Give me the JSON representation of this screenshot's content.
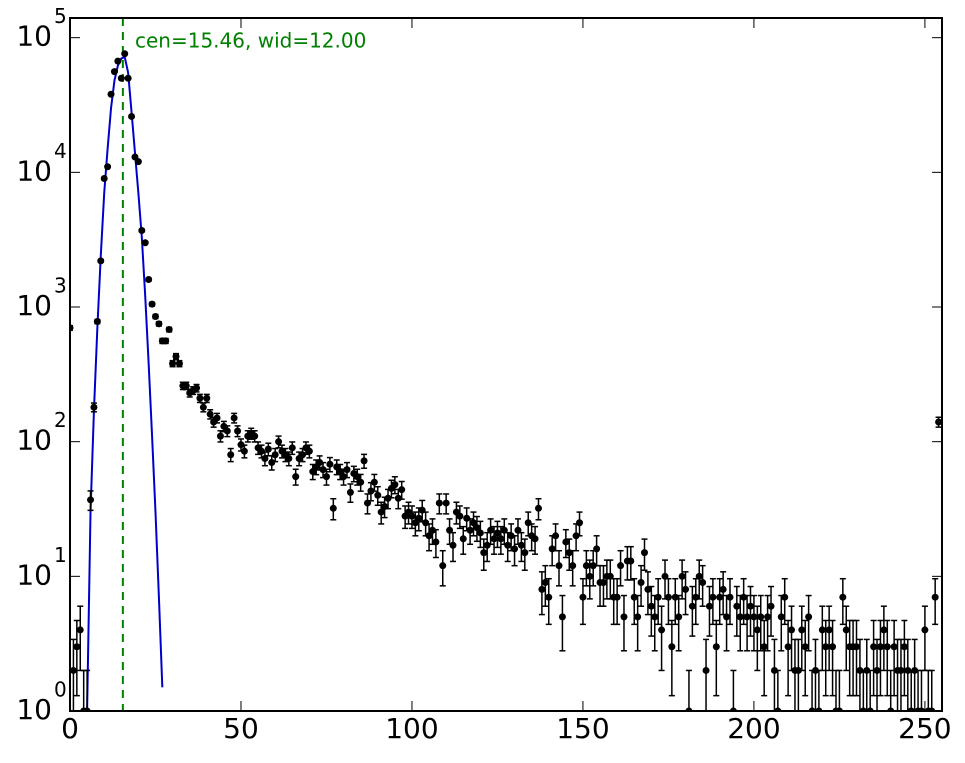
{
  "chart_data": {
    "type": "scatter",
    "yscale": "log",
    "xlim": [
      0,
      255
    ],
    "ylim": [
      1,
      140000
    ],
    "xticks": [
      0,
      50,
      100,
      150,
      200,
      250
    ],
    "yticks": [
      {
        "value": 1,
        "label": "10",
        "exponent": "0"
      },
      {
        "value": 10,
        "label": "10",
        "exponent": "1"
      },
      {
        "value": 100,
        "label": "10",
        "exponent": "2"
      },
      {
        "value": 1000,
        "label": "10",
        "exponent": "3"
      },
      {
        "value": 10000,
        "label": "10",
        "exponent": "4"
      },
      {
        "value": 100000,
        "label": "10",
        "exponent": "5"
      }
    ],
    "annotation": "cen=15.46, wid=12.00",
    "vline": {
      "x": 15.46,
      "color": "#008000"
    },
    "series": [
      {
        "kind": "errorbar",
        "color": "#000000",
        "x": [
          0,
          1,
          2,
          3,
          4,
          5,
          6,
          7,
          8,
          9,
          10,
          11,
          12,
          13,
          14,
          15,
          16,
          17,
          18,
          19,
          20,
          21,
          22,
          23,
          24,
          25,
          26,
          27,
          28,
          29,
          30,
          31,
          32,
          33,
          34,
          35,
          36,
          37,
          38,
          39,
          40,
          41,
          42,
          43,
          44,
          45,
          46,
          47,
          48,
          49,
          50,
          51,
          52,
          53,
          54,
          55,
          56,
          57,
          58,
          59,
          60,
          61,
          62,
          63,
          64,
          65,
          66,
          67,
          68,
          69,
          70,
          71,
          72,
          73,
          74,
          75,
          76,
          77,
          78,
          79,
          80,
          81,
          82,
          83,
          84,
          85,
          86,
          87,
          88,
          89,
          90,
          91,
          92,
          93,
          94,
          95,
          96,
          97,
          98,
          99,
          100,
          101,
          102,
          103,
          104,
          105,
          106,
          107,
          108,
          109,
          110,
          111,
          112,
          113,
          114,
          115,
          116,
          117,
          118,
          119,
          120,
          121,
          122,
          123,
          124,
          125,
          126,
          127,
          128,
          129,
          130,
          131,
          132,
          133,
          134,
          135,
          136,
          137,
          138,
          139,
          140,
          141,
          142,
          143,
          144,
          145,
          146,
          147,
          148,
          149,
          150,
          151,
          152,
          153,
          154,
          155,
          156,
          157,
          158,
          159,
          160,
          161,
          162,
          163,
          164,
          165,
          166,
          167,
          168,
          169,
          170,
          171,
          172,
          173,
          174,
          175,
          176,
          177,
          178,
          179,
          180,
          181,
          182,
          183,
          184,
          185,
          186,
          187,
          188,
          189,
          190,
          191,
          192,
          193,
          194,
          195,
          196,
          197,
          198,
          199,
          200,
          201,
          202,
          203,
          204,
          205,
          206,
          207,
          208,
          209,
          210,
          211,
          212,
          213,
          214,
          215,
          216,
          217,
          218,
          219,
          220,
          221,
          222,
          223,
          224,
          225,
          226,
          227,
          228,
          229,
          230,
          231,
          232,
          233,
          234,
          235,
          236,
          237,
          238,
          239,
          240,
          241,
          242,
          243,
          244,
          245,
          246,
          247,
          248,
          249,
          250,
          251,
          252,
          253,
          254
        ],
        "values": [
          700,
          2,
          3,
          4,
          1,
          1,
          37,
          180,
          780,
          2200,
          9000,
          11000,
          38000,
          56000,
          67000,
          50000,
          76000,
          50000,
          26000,
          13000,
          12000,
          3700,
          3000,
          1600,
          1050,
          850,
          750,
          560,
          560,
          680,
          380,
          430,
          380,
          260,
          260,
          230,
          240,
          250,
          210,
          180,
          210,
          160,
          140,
          150,
          110,
          130,
          120,
          80,
          150,
          120,
          95,
          85,
          110,
          115,
          110,
          90,
          85,
          75,
          88,
          70,
          80,
          100,
          85,
          80,
          75,
          90,
          55,
          75,
          80,
          90,
          85,
          60,
          65,
          70,
          62,
          55,
          68,
          32,
          65,
          60,
          55,
          62,
          42,
          58,
          55,
          50,
          72,
          35,
          43,
          50,
          40,
          30,
          33,
          38,
          45,
          48,
          38,
          44,
          28,
          30,
          28,
          25,
          27,
          31,
          25,
          20,
          22,
          18,
          35,
          12,
          35,
          22,
          17,
          30,
          28,
          19,
          27,
          22,
          25,
          23,
          21,
          15,
          17,
          22,
          19,
          21,
          19,
          22,
          17,
          20,
          16,
          22,
          17,
          15,
          25,
          20,
          19,
          32,
          8,
          9,
          7,
          16,
          20,
          12,
          5,
          18,
          15,
          12,
          20,
          25,
          7,
          12,
          10,
          12,
          16,
          9,
          9,
          10,
          10,
          7,
          7,
          12,
          5,
          13,
          13,
          7,
          5,
          9,
          15,
          8,
          6,
          5,
          7,
          4,
          10,
          7,
          3,
          7,
          5,
          10,
          8,
          1,
          6,
          7,
          10,
          9,
          2,
          6,
          7,
          3,
          7,
          8,
          5,
          7,
          1,
          6,
          5,
          7,
          5,
          6,
          5,
          4,
          5,
          3,
          5,
          6,
          2,
          1,
          5,
          7,
          3,
          4,
          2,
          2,
          4,
          3,
          5,
          1,
          2,
          1,
          4,
          3,
          4,
          3,
          1,
          1,
          7,
          4,
          3,
          3,
          3,
          2,
          1,
          2,
          1,
          3,
          2,
          3,
          4,
          3,
          1,
          3,
          2,
          2,
          3,
          2,
          1,
          2,
          1,
          1,
          4,
          1,
          1,
          7,
          140
        ],
        "errors": [
          26.5,
          1.4,
          1.7,
          2,
          1,
          1,
          6.1,
          13.4,
          27.9,
          46.9,
          94.9,
          104.9,
          194.9,
          236.6,
          258.8,
          223.6,
          275.7,
          223.6,
          161.2,
          114,
          109.5,
          60.8,
          54.8,
          40,
          32.4,
          29.2,
          27.4,
          23.7,
          23.7,
          26.1,
          19.5,
          20.7,
          19.5,
          16.1,
          16.1,
          15.2,
          15.5,
          15.8,
          14.5,
          13.4,
          14.5,
          12.6,
          11.8,
          12.2,
          10.5,
          11.4,
          11,
          8.9,
          12.2,
          11,
          9.7,
          9.2,
          10.5,
          10.7,
          10.5,
          9.5,
          9.2,
          8.7,
          9.4,
          8.4,
          8.9,
          10,
          9.2,
          8.9,
          8.7,
          9.5,
          7.4,
          8.7,
          8.9,
          9.5,
          9.2,
          7.7,
          8.1,
          8.4,
          7.9,
          7.4,
          8.2,
          5.7,
          8.1,
          7.7,
          7.4,
          7.9,
          6.5,
          7.6,
          7.4,
          7.1,
          8.5,
          5.9,
          6.6,
          7.1,
          6.3,
          5.5,
          5.7,
          6.2,
          6.7,
          6.9,
          6.2,
          6.6,
          5.3,
          5.5,
          5.3,
          5,
          5.2,
          5.6,
          5,
          4.5,
          4.7,
          4.2,
          5.9,
          3.5,
          5.9,
          4.7,
          4.1,
          5.5,
          5.3,
          4.4,
          5.2,
          4.7,
          5,
          4.8,
          4.6,
          3.9,
          4.1,
          4.7,
          4.4,
          4.6,
          4.4,
          4.7,
          4.1,
          4.5,
          4,
          4.7,
          4.1,
          3.9,
          5,
          4.5,
          4.4,
          5.7,
          2.8,
          3,
          2.6,
          4,
          4.5,
          3.5,
          2.2,
          4.2,
          3.9,
          3.5,
          4.5,
          5,
          2.6,
          3.5,
          3.2,
          3.5,
          4,
          3,
          3,
          3.2,
          3.2,
          2.6,
          2.6,
          3.5,
          2.2,
          3.6,
          3.6,
          2.6,
          2.2,
          3,
          3.9,
          2.8,
          2.4,
          2.2,
          2.6,
          2,
          3.2,
          2.6,
          1.7,
          2.6,
          2.2,
          3.2,
          2.8,
          1,
          2.4,
          2.6,
          3.2,
          3,
          1.4,
          2.4,
          2.6,
          1.7,
          2.6,
          2.8,
          2.2,
          2.6,
          1,
          2.4,
          2.2,
          2.6,
          2.2,
          2.4,
          2.2,
          2,
          2.2,
          1.7,
          2.2,
          2.4,
          1.4,
          1,
          2.2,
          2.6,
          1.7,
          2,
          1.4,
          1.4,
          2,
          1.7,
          2.2,
          1,
          1.4,
          1,
          2,
          1.7,
          2,
          1.7,
          1,
          1,
          2.6,
          2,
          1.7,
          1.7,
          1.7,
          1.4,
          1,
          1.4,
          1,
          1.7,
          1.4,
          1.7,
          2,
          1.7,
          1,
          1.7,
          1.4,
          1.4,
          1.7,
          1.4,
          1,
          1.4,
          1,
          1,
          2,
          1,
          1,
          2.6,
          11.8
        ]
      },
      {
        "kind": "line",
        "color": "#0000cc",
        "x": [
          5,
          6,
          7,
          8,
          9,
          10,
          11,
          12,
          13,
          14,
          15,
          16,
          17,
          18,
          19,
          20,
          21,
          22,
          23,
          24,
          25,
          26,
          27
        ],
        "values": [
          1,
          30,
          170,
          700,
          2400,
          7000,
          15000,
          30000,
          48000,
          62000,
          70000,
          72000,
          55000,
          28000,
          14000,
          7000,
          3300,
          1200,
          380,
          110,
          30,
          7,
          1.5
        ]
      }
    ]
  }
}
